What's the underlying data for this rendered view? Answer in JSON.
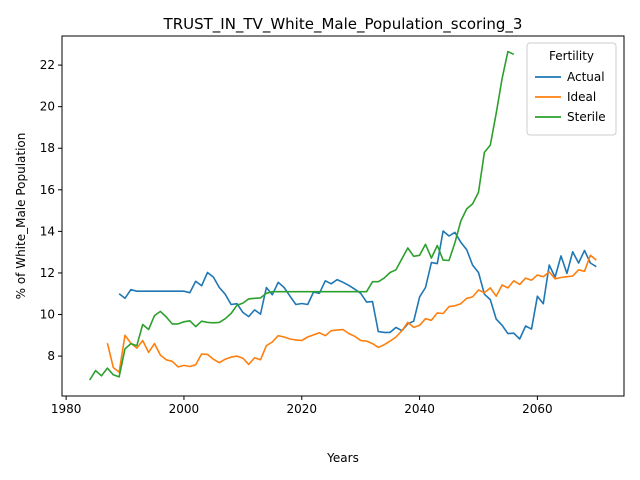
{
  "chart_data": {
    "type": "line",
    "title": "TRUST_IN_TV_White_Male_Population_scoring_3",
    "xlabel": "Years",
    "ylabel": "% of White_Male Population",
    "xlim": [
      1979.3,
      2074.7
    ],
    "ylim": [
      6.08,
      23.4
    ],
    "xticks": [
      1980,
      2000,
      2020,
      2040,
      2060
    ],
    "yticks": [
      8,
      10,
      12,
      14,
      16,
      18,
      20,
      22
    ],
    "grid": false,
    "legend": {
      "title": "Fertility",
      "placement": "top-right"
    },
    "series": [
      {
        "name": "Actual",
        "color": "#1f77b4",
        "points": [
          [
            1989,
            11.0
          ],
          [
            1990,
            10.78
          ],
          [
            1991,
            11.2
          ],
          [
            1992,
            11.12
          ],
          [
            1993,
            11.12
          ],
          [
            1994,
            11.12
          ],
          [
            1995,
            11.12
          ],
          [
            1996,
            11.12
          ],
          [
            1997,
            11.12
          ],
          [
            1998,
            11.12
          ],
          [
            1999,
            11.12
          ],
          [
            2000,
            11.12
          ],
          [
            2001,
            11.05
          ],
          [
            2002,
            11.6
          ],
          [
            2003,
            11.38
          ],
          [
            2004,
            12.02
          ],
          [
            2005,
            11.8
          ],
          [
            2006,
            11.3
          ],
          [
            2007,
            10.98
          ],
          [
            2008,
            10.48
          ],
          [
            2009,
            10.52
          ],
          [
            2010,
            10.1
          ],
          [
            2011,
            9.9
          ],
          [
            2012,
            10.22
          ],
          [
            2013,
            10.02
          ],
          [
            2014,
            11.3
          ],
          [
            2015,
            10.95
          ],
          [
            2016,
            11.55
          ],
          [
            2017,
            11.3
          ],
          [
            2018,
            10.88
          ],
          [
            2019,
            10.48
          ],
          [
            2020,
            10.53
          ],
          [
            2021,
            10.48
          ],
          [
            2022,
            11.08
          ],
          [
            2023,
            11.02
          ],
          [
            2024,
            11.62
          ],
          [
            2025,
            11.48
          ],
          [
            2026,
            11.68
          ],
          [
            2027,
            11.55
          ],
          [
            2028,
            11.4
          ],
          [
            2029,
            11.22
          ],
          [
            2030,
            11.02
          ],
          [
            2031,
            10.6
          ],
          [
            2032,
            10.62
          ],
          [
            2033,
            9.18
          ],
          [
            2034,
            9.14
          ],
          [
            2035,
            9.14
          ],
          [
            2036,
            9.38
          ],
          [
            2037,
            9.22
          ],
          [
            2038,
            9.55
          ],
          [
            2039,
            9.68
          ],
          [
            2040,
            10.85
          ],
          [
            2041,
            11.3
          ],
          [
            2042,
            12.5
          ],
          [
            2043,
            12.45
          ],
          [
            2044,
            14.02
          ],
          [
            2045,
            13.78
          ],
          [
            2046,
            13.95
          ],
          [
            2047,
            13.48
          ],
          [
            2048,
            13.12
          ],
          [
            2049,
            12.38
          ],
          [
            2050,
            12.02
          ],
          [
            2051,
            10.98
          ],
          [
            2052,
            10.72
          ],
          [
            2053,
            9.78
          ],
          [
            2054,
            9.48
          ],
          [
            2055,
            9.08
          ],
          [
            2056,
            9.1
          ],
          [
            2057,
            8.82
          ],
          [
            2058,
            9.45
          ],
          [
            2059,
            9.3
          ],
          [
            2060,
            10.88
          ],
          [
            2061,
            10.52
          ],
          [
            2062,
            12.38
          ],
          [
            2063,
            11.8
          ],
          [
            2064,
            12.82
          ],
          [
            2065,
            11.98
          ],
          [
            2066,
            13.02
          ],
          [
            2067,
            12.48
          ],
          [
            2068,
            13.08
          ],
          [
            2069,
            12.48
          ],
          [
            2070,
            12.3
          ]
        ]
      },
      {
        "name": "Ideal",
        "color": "#ff7f0e",
        "points": [
          [
            1987,
            8.62
          ],
          [
            1988,
            7.45
          ],
          [
            1989,
            7.22
          ],
          [
            1990,
            9.0
          ],
          [
            1991,
            8.62
          ],
          [
            1992,
            8.38
          ],
          [
            1993,
            8.75
          ],
          [
            1994,
            8.18
          ],
          [
            1995,
            8.6
          ],
          [
            1996,
            8.05
          ],
          [
            1997,
            7.82
          ],
          [
            1998,
            7.75
          ],
          [
            1999,
            7.48
          ],
          [
            2000,
            7.55
          ],
          [
            2001,
            7.5
          ],
          [
            2002,
            7.58
          ],
          [
            2003,
            8.1
          ],
          [
            2004,
            8.08
          ],
          [
            2005,
            7.85
          ],
          [
            2006,
            7.68
          ],
          [
            2007,
            7.85
          ],
          [
            2008,
            7.95
          ],
          [
            2009,
            8.0
          ],
          [
            2010,
            7.9
          ],
          [
            2011,
            7.6
          ],
          [
            2012,
            7.92
          ],
          [
            2013,
            7.82
          ],
          [
            2014,
            8.5
          ],
          [
            2015,
            8.68
          ],
          [
            2016,
            8.98
          ],
          [
            2017,
            8.92
          ],
          [
            2018,
            8.82
          ],
          [
            2019,
            8.78
          ],
          [
            2020,
            8.75
          ],
          [
            2021,
            8.92
          ],
          [
            2022,
            9.02
          ],
          [
            2023,
            9.12
          ],
          [
            2024,
            8.98
          ],
          [
            2025,
            9.22
          ],
          [
            2026,
            9.25
          ],
          [
            2027,
            9.28
          ],
          [
            2028,
            9.08
          ],
          [
            2029,
            8.95
          ],
          [
            2030,
            8.75
          ],
          [
            2031,
            8.72
          ],
          [
            2032,
            8.6
          ],
          [
            2033,
            8.42
          ],
          [
            2034,
            8.55
          ],
          [
            2035,
            8.72
          ],
          [
            2036,
            8.92
          ],
          [
            2037,
            9.22
          ],
          [
            2038,
            9.62
          ],
          [
            2039,
            9.38
          ],
          [
            2040,
            9.48
          ],
          [
            2041,
            9.8
          ],
          [
            2042,
            9.72
          ],
          [
            2043,
            10.08
          ],
          [
            2044,
            10.05
          ],
          [
            2045,
            10.38
          ],
          [
            2046,
            10.42
          ],
          [
            2047,
            10.52
          ],
          [
            2048,
            10.78
          ],
          [
            2049,
            10.85
          ],
          [
            2050,
            11.18
          ],
          [
            2051,
            11.05
          ],
          [
            2052,
            11.28
          ],
          [
            2053,
            10.88
          ],
          [
            2054,
            11.42
          ],
          [
            2055,
            11.28
          ],
          [
            2056,
            11.62
          ],
          [
            2057,
            11.45
          ],
          [
            2058,
            11.75
          ],
          [
            2059,
            11.65
          ],
          [
            2060,
            11.9
          ],
          [
            2061,
            11.82
          ],
          [
            2062,
            12.05
          ],
          [
            2063,
            11.72
          ],
          [
            2064,
            11.78
          ],
          [
            2065,
            11.82
          ],
          [
            2066,
            11.85
          ],
          [
            2067,
            12.15
          ],
          [
            2068,
            12.08
          ],
          [
            2069,
            12.85
          ],
          [
            2070,
            12.62
          ]
        ]
      },
      {
        "name": "Sterile",
        "color": "#2ca02c",
        "points": [
          [
            1984,
            6.85
          ],
          [
            1985,
            7.3
          ],
          [
            1986,
            7.05
          ],
          [
            1987,
            7.42
          ],
          [
            1988,
            7.1
          ],
          [
            1989,
            7.0
          ],
          [
            1990,
            8.35
          ],
          [
            1991,
            8.6
          ],
          [
            1992,
            8.5
          ],
          [
            1993,
            9.52
          ],
          [
            1994,
            9.28
          ],
          [
            1995,
            9.95
          ],
          [
            1996,
            10.15
          ],
          [
            1997,
            9.88
          ],
          [
            1998,
            9.55
          ],
          [
            1999,
            9.55
          ],
          [
            2000,
            9.65
          ],
          [
            2001,
            9.7
          ],
          [
            2002,
            9.42
          ],
          [
            2003,
            9.68
          ],
          [
            2004,
            9.62
          ],
          [
            2005,
            9.6
          ],
          [
            2006,
            9.62
          ],
          [
            2007,
            9.8
          ],
          [
            2008,
            10.05
          ],
          [
            2009,
            10.45
          ],
          [
            2010,
            10.55
          ],
          [
            2011,
            10.75
          ],
          [
            2012,
            10.78
          ],
          [
            2013,
            10.8
          ],
          [
            2014,
            11.02
          ],
          [
            2015,
            11.1
          ],
          [
            2016,
            11.1
          ],
          [
            2017,
            11.1
          ],
          [
            2018,
            11.1
          ],
          [
            2019,
            11.1
          ],
          [
            2020,
            11.1
          ],
          [
            2021,
            11.1
          ],
          [
            2022,
            11.1
          ],
          [
            2023,
            11.1
          ],
          [
            2024,
            11.1
          ],
          [
            2025,
            11.1
          ],
          [
            2026,
            11.1
          ],
          [
            2027,
            11.1
          ],
          [
            2028,
            11.1
          ],
          [
            2029,
            11.1
          ],
          [
            2030,
            11.1
          ],
          [
            2031,
            11.1
          ],
          [
            2032,
            11.58
          ],
          [
            2033,
            11.58
          ],
          [
            2034,
            11.75
          ],
          [
            2035,
            12.02
          ],
          [
            2036,
            12.15
          ],
          [
            2037,
            12.68
          ],
          [
            2038,
            13.2
          ],
          [
            2039,
            12.8
          ],
          [
            2040,
            12.85
          ],
          [
            2041,
            13.38
          ],
          [
            2042,
            12.72
          ],
          [
            2043,
            13.32
          ],
          [
            2044,
            12.62
          ],
          [
            2045,
            12.6
          ],
          [
            2046,
            13.45
          ],
          [
            2047,
            14.5
          ],
          [
            2048,
            15.08
          ],
          [
            2049,
            15.32
          ],
          [
            2050,
            15.88
          ],
          [
            2051,
            17.8
          ],
          [
            2052,
            18.15
          ],
          [
            2053,
            19.68
          ],
          [
            2054,
            21.35
          ],
          [
            2055,
            22.65
          ],
          [
            2056,
            22.52
          ]
        ]
      }
    ]
  }
}
